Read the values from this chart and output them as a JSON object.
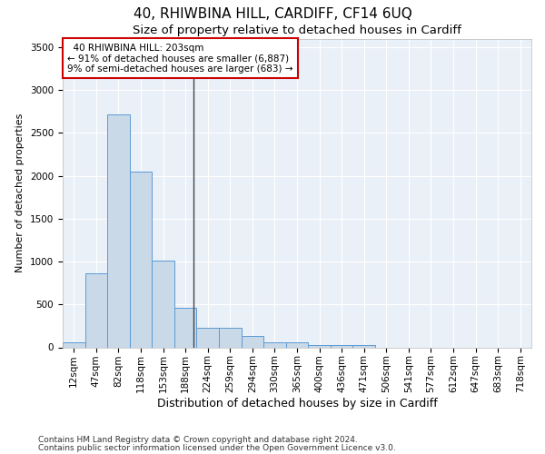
{
  "title1": "40, RHIWBINA HILL, CARDIFF, CF14 6UQ",
  "title2": "Size of property relative to detached houses in Cardiff",
  "xlabel": "Distribution of detached houses by size in Cardiff",
  "ylabel": "Number of detached properties",
  "categories": [
    "12sqm",
    "47sqm",
    "82sqm",
    "118sqm",
    "153sqm",
    "188sqm",
    "224sqm",
    "259sqm",
    "294sqm",
    "330sqm",
    "365sqm",
    "400sqm",
    "436sqm",
    "471sqm",
    "506sqm",
    "541sqm",
    "577sqm",
    "612sqm",
    "647sqm",
    "683sqm",
    "718sqm"
  ],
  "values": [
    60,
    860,
    2720,
    2050,
    1010,
    460,
    225,
    225,
    130,
    60,
    55,
    30,
    30,
    25,
    0,
    0,
    0,
    0,
    0,
    0,
    0
  ],
  "bar_color": "#c9d9e8",
  "bar_edge_color": "#5b9bd5",
  "annotation_text": "  40 RHIWBINA HILL: 203sqm\n← 91% of detached houses are smaller (6,887)\n9% of semi-detached houses are larger (683) →",
  "annotation_box_color": "#ffffff",
  "annotation_box_edge_color": "#cc0000",
  "property_line_x": 5.35,
  "ylim": [
    0,
    3600
  ],
  "yticks": [
    0,
    500,
    1000,
    1500,
    2000,
    2500,
    3000,
    3500
  ],
  "footer1": "Contains HM Land Registry data © Crown copyright and database right 2024.",
  "footer2": "Contains public sector information licensed under the Open Government Licence v3.0.",
  "plot_bg_color": "#eaf0f8",
  "title1_fontsize": 11,
  "title2_fontsize": 9.5,
  "xlabel_fontsize": 9,
  "ylabel_fontsize": 8,
  "tick_fontsize": 7.5,
  "footer_fontsize": 6.5,
  "annotation_fontsize": 7.5
}
